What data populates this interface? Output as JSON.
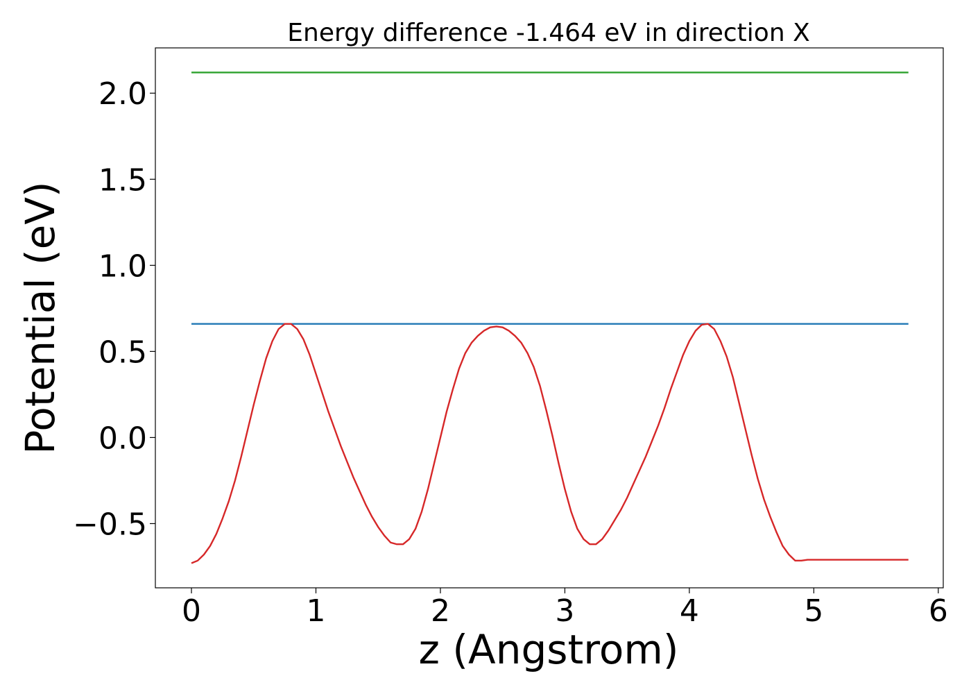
{
  "chart_data": {
    "type": "line",
    "title": "Energy difference -1.464 eV in direction X",
    "xlabel": "z (Angstrom)",
    "ylabel": "Potential (eV)",
    "xlim": [
      -0.29,
      6.04
    ],
    "ylim": [
      -0.873,
      2.263
    ],
    "x_ticks": [
      0,
      1,
      2,
      3,
      4,
      5,
      6
    ],
    "y_ticks": [
      -0.5,
      0.0,
      0.5,
      1.0,
      1.5,
      2.0
    ],
    "x_tick_labels": [
      "0",
      "1",
      "2",
      "3",
      "4",
      "5",
      "6"
    ],
    "y_tick_labels": [
      "−0.5",
      "0.0",
      "0.5",
      "1.0",
      "1.5",
      "2.0"
    ],
    "grid": false,
    "series": [
      {
        "color": "#2ca02c",
        "style": "horizontal-line",
        "x": [
          0.0,
          5.76
        ],
        "y": [
          2.12,
          2.12
        ]
      },
      {
        "color": "#1f77b4",
        "style": "horizontal-line",
        "x": [
          0.0,
          5.76
        ],
        "y": [
          0.66,
          0.66
        ]
      },
      {
        "color": "#d62728",
        "style": "line",
        "x": [
          0.0,
          0.05,
          0.1,
          0.15,
          0.2,
          0.25,
          0.3,
          0.35,
          0.4,
          0.45,
          0.5,
          0.55,
          0.6,
          0.65,
          0.7,
          0.75,
          0.8,
          0.85,
          0.9,
          0.95,
          1.0,
          1.05,
          1.1,
          1.15,
          1.2,
          1.25,
          1.3,
          1.35,
          1.4,
          1.45,
          1.5,
          1.55,
          1.6,
          1.65,
          1.7,
          1.75,
          1.8,
          1.85,
          1.9,
          1.95,
          2.0,
          2.05,
          2.1,
          2.15,
          2.2,
          2.25,
          2.3,
          2.35,
          2.4,
          2.45,
          2.5,
          2.55,
          2.6,
          2.65,
          2.7,
          2.75,
          2.8,
          2.85,
          2.9,
          2.95,
          3.0,
          3.05,
          3.1,
          3.15,
          3.2,
          3.25,
          3.3,
          3.35,
          3.4,
          3.45,
          3.5,
          3.55,
          3.6,
          3.65,
          3.7,
          3.75,
          3.8,
          3.85,
          3.9,
          3.95,
          4.0,
          4.05,
          4.1,
          4.15,
          4.2,
          4.25,
          4.3,
          4.35,
          4.4,
          4.45,
          4.5,
          4.55,
          4.6,
          4.65,
          4.7,
          4.75,
          4.8,
          4.85,
          4.9,
          4.95,
          5.0,
          5.05,
          5.1,
          5.15,
          5.2,
          5.25,
          5.3,
          5.35,
          5.4,
          5.45,
          5.5,
          5.55,
          5.6,
          5.65,
          5.7,
          5.76
        ],
        "y": [
          -0.73,
          -0.715,
          -0.68,
          -0.63,
          -0.56,
          -0.47,
          -0.37,
          -0.25,
          -0.11,
          0.04,
          0.19,
          0.33,
          0.46,
          0.56,
          0.63,
          0.66,
          0.66,
          0.63,
          0.57,
          0.48,
          0.37,
          0.26,
          0.15,
          0.05,
          -0.05,
          -0.14,
          -0.23,
          -0.31,
          -0.39,
          -0.46,
          -0.52,
          -0.57,
          -0.61,
          -0.62,
          -0.62,
          -0.59,
          -0.53,
          -0.43,
          -0.3,
          -0.15,
          0.0,
          0.15,
          0.28,
          0.4,
          0.49,
          0.55,
          0.59,
          0.62,
          0.64,
          0.645,
          0.64,
          0.62,
          0.59,
          0.55,
          0.49,
          0.41,
          0.3,
          0.16,
          0.01,
          -0.15,
          -0.3,
          -0.43,
          -0.53,
          -0.59,
          -0.62,
          -0.62,
          -0.59,
          -0.54,
          -0.48,
          -0.42,
          -0.35,
          -0.27,
          -0.19,
          -0.11,
          -0.02,
          0.07,
          0.17,
          0.28,
          0.38,
          0.48,
          0.56,
          0.62,
          0.655,
          0.66,
          0.63,
          0.56,
          0.47,
          0.35,
          0.2,
          0.05,
          -0.1,
          -0.24,
          -0.36,
          -0.46,
          -0.55,
          -0.63,
          -0.68,
          -0.715,
          -0.715,
          -0.71,
          -0.71,
          -0.71,
          -0.71,
          -0.71,
          -0.71,
          -0.71,
          -0.71,
          -0.71,
          -0.71,
          -0.71,
          -0.71,
          -0.71,
          -0.71,
          -0.71,
          -0.71,
          -0.71
        ]
      }
    ]
  }
}
